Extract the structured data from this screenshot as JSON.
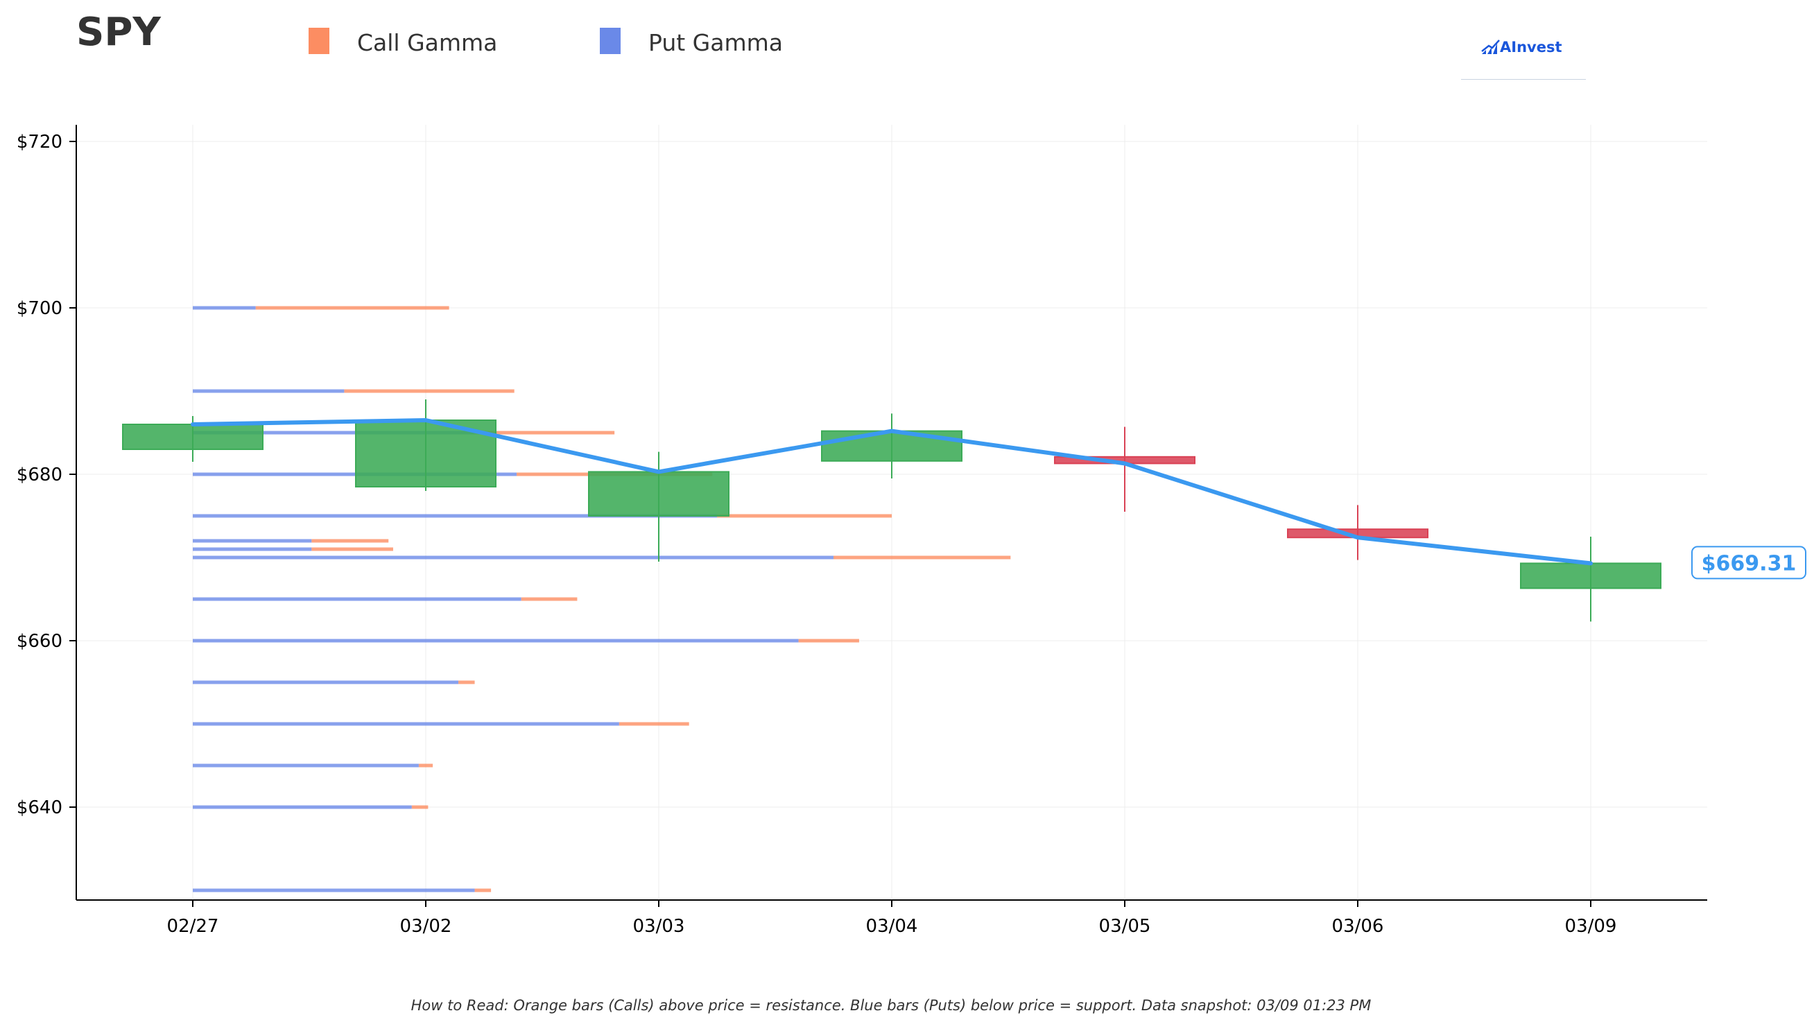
{
  "header": {
    "ticker": "SPY",
    "legend": [
      {
        "label": "Call Gamma",
        "color": "#fc8d62"
      },
      {
        "label": "Put Gamma",
        "color": "#6a89e8"
      }
    ],
    "logo_text": "AInvest"
  },
  "footnote": "How to Read: Orange bars (Calls) above price = resistance. Blue bars (Puts) below price = support. Data snapshot: 03/09 01:23 PM",
  "chart_data": {
    "type": "candlestick",
    "categories": [
      "02/27",
      "03/02",
      "03/03",
      "03/04",
      "03/05",
      "03/06",
      "03/09"
    ],
    "y_ticks": [
      640,
      660,
      680,
      700,
      720
    ],
    "y_tick_labels": [
      "$640",
      "$660",
      "$680",
      "$700",
      "$720"
    ],
    "ylim": [
      629,
      722
    ],
    "grid": true,
    "candles": [
      {
        "date": "02/27",
        "open": 683.0,
        "close": 686.0,
        "high": 687.0,
        "low": 681.5,
        "direction": "up"
      },
      {
        "date": "03/02",
        "open": 678.5,
        "close": 686.5,
        "high": 689.0,
        "low": 678.0,
        "direction": "up"
      },
      {
        "date": "03/03",
        "open": 675.0,
        "close": 680.3,
        "high": 682.7,
        "low": 669.5,
        "direction": "up"
      },
      {
        "date": "03/04",
        "open": 681.6,
        "close": 685.2,
        "high": 687.3,
        "low": 679.5,
        "direction": "up"
      },
      {
        "date": "03/05",
        "open": 682.1,
        "close": 681.3,
        "high": 685.7,
        "low": 675.5,
        "direction": "down"
      },
      {
        "date": "03/06",
        "open": 673.4,
        "close": 672.4,
        "high": 676.3,
        "low": 669.7,
        "direction": "down"
      },
      {
        "date": "03/09",
        "open": 666.3,
        "close": 669.3,
        "high": 672.5,
        "low": 662.3,
        "direction": "up"
      }
    ],
    "close_line": [
      686.0,
      686.5,
      680.3,
      685.2,
      681.3,
      672.4,
      669.3
    ],
    "last_price_label": "$669.31",
    "gamma_bars": [
      {
        "strike": 700,
        "put": 0.27,
        "call": 0.83
      },
      {
        "strike": 690,
        "put": 0.65,
        "call": 0.73
      },
      {
        "strike": 685,
        "put": 1.21,
        "call": 0.6
      },
      {
        "strike": 680,
        "put": 1.39,
        "call": 0.84
      },
      {
        "strike": 675,
        "put": 2.25,
        "call": 0.75
      },
      {
        "strike": 672,
        "put": 0.51,
        "call": 0.33
      },
      {
        "strike": 671,
        "put": 0.51,
        "call": 0.35
      },
      {
        "strike": 670,
        "put": 2.75,
        "call": 0.76
      },
      {
        "strike": 665,
        "put": 1.41,
        "call": 0.24
      },
      {
        "strike": 660,
        "put": 2.6,
        "call": 0.26
      },
      {
        "strike": 655,
        "put": 1.14,
        "call": 0.07
      },
      {
        "strike": 650,
        "put": 1.83,
        "call": 0.3
      },
      {
        "strike": 645,
        "put": 0.97,
        "call": 0.06
      },
      {
        "strike": 640,
        "put": 0.94,
        "call": 0.07
      },
      {
        "strike": 630,
        "put": 1.21,
        "call": 0.07
      }
    ],
    "colors": {
      "up": "#3cab57",
      "down": "#d94255",
      "close_line": "#3b99f0",
      "call": "#fc8d62",
      "put": "#6a89e8",
      "axis": "#000000",
      "grid": "#ececec"
    }
  }
}
